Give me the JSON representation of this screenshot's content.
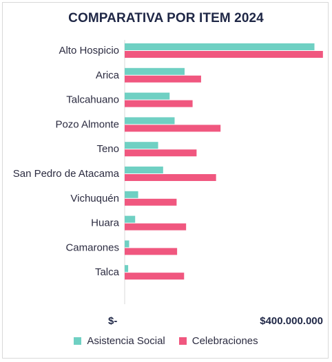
{
  "chart_data": {
    "type": "bar",
    "orientation": "horizontal",
    "title": "COMPARATIVA POR ITEM 2024",
    "categories": [
      "Alto Hospicio",
      "Arica",
      "Talcahuano",
      "Pozo Almonte",
      "Teno",
      "San Pedro de Atacama",
      "Vichuquén",
      "Huara",
      "Camarones",
      "Talca"
    ],
    "series": [
      {
        "name": "Asistencia Social",
        "color": "#6fd0c3",
        "values": [
          380000000,
          120000000,
          90000000,
          100000000,
          67000000,
          77000000,
          27000000,
          21000000,
          9000000,
          7000000
        ]
      },
      {
        "name": "Celebraciones",
        "color": "#f0577f",
        "values": [
          397000000,
          153000000,
          136000000,
          192000000,
          144000000,
          183000000,
          104000000,
          123000000,
          105000000,
          119000000
        ]
      }
    ],
    "xlim": [
      0,
      400000000
    ],
    "tick_labels": [
      "$-",
      "$400.000.000"
    ],
    "legend_position": "bottom",
    "grid": false
  }
}
